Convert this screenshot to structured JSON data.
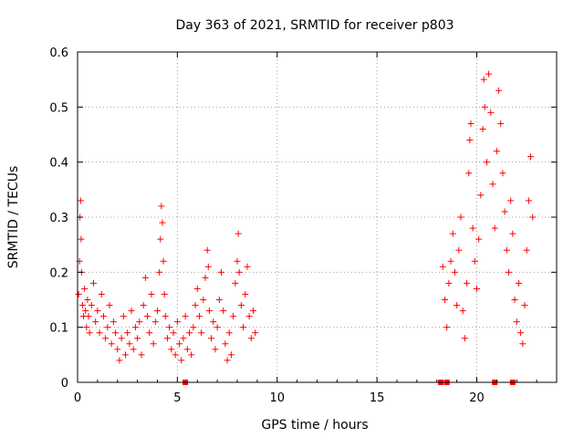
{
  "chart_data": {
    "type": "scatter",
    "title": "Day 363 of 2021, SRMTID for receiver p803",
    "xlabel": "GPS time / hours",
    "ylabel": "SRMTID / TECUs",
    "xlim": [
      0,
      24
    ],
    "ylim": [
      0,
      0.6
    ],
    "xticks": [
      0,
      5,
      10,
      15,
      20
    ],
    "yticks": [
      0,
      0.1,
      0.2,
      0.3,
      0.4,
      0.5,
      0.6
    ],
    "xtick_labels": [
      "0",
      "5",
      "10",
      "15",
      "20"
    ],
    "ytick_labels": [
      "0",
      "0.1",
      "0.2",
      "0.3",
      "0.4",
      "0.5",
      "0.6"
    ],
    "grid": true,
    "marker": "+",
    "series_color": "#ff0000",
    "series": [
      {
        "name": "SRMTID",
        "points": [
          [
            0.05,
            0.16
          ],
          [
            0.1,
            0.22
          ],
          [
            0.12,
            0.3
          ],
          [
            0.15,
            0.33
          ],
          [
            0.18,
            0.26
          ],
          [
            0.2,
            0.2
          ],
          [
            0.25,
            0.14
          ],
          [
            0.3,
            0.12
          ],
          [
            0.35,
            0.17
          ],
          [
            0.4,
            0.13
          ],
          [
            0.45,
            0.1
          ],
          [
            0.5,
            0.15
          ],
          [
            0.55,
            0.12
          ],
          [
            0.6,
            0.09
          ],
          [
            0.7,
            0.14
          ],
          [
            0.8,
            0.18
          ],
          [
            0.9,
            0.11
          ],
          [
            1.0,
            0.13
          ],
          [
            1.1,
            0.09
          ],
          [
            1.2,
            0.16
          ],
          [
            1.3,
            0.12
          ],
          [
            1.4,
            0.08
          ],
          [
            1.5,
            0.1
          ],
          [
            1.6,
            0.14
          ],
          [
            1.7,
            0.07
          ],
          [
            1.8,
            0.11
          ],
          [
            1.9,
            0.09
          ],
          [
            2.0,
            0.06
          ],
          [
            2.1,
            0.04
          ],
          [
            2.2,
            0.08
          ],
          [
            2.3,
            0.12
          ],
          [
            2.4,
            0.05
          ],
          [
            2.5,
            0.09
          ],
          [
            2.6,
            0.07
          ],
          [
            2.7,
            0.13
          ],
          [
            2.8,
            0.06
          ],
          [
            2.9,
            0.1
          ],
          [
            3.0,
            0.08
          ],
          [
            3.1,
            0.11
          ],
          [
            3.2,
            0.05
          ],
          [
            3.3,
            0.14
          ],
          [
            3.4,
            0.19
          ],
          [
            3.5,
            0.12
          ],
          [
            3.6,
            0.09
          ],
          [
            3.7,
            0.16
          ],
          [
            3.8,
            0.07
          ],
          [
            3.9,
            0.11
          ],
          [
            4.0,
            0.13
          ],
          [
            4.1,
            0.2
          ],
          [
            4.15,
            0.26
          ],
          [
            4.2,
            0.32
          ],
          [
            4.25,
            0.29
          ],
          [
            4.3,
            0.22
          ],
          [
            4.35,
            0.16
          ],
          [
            4.4,
            0.12
          ],
          [
            4.5,
            0.08
          ],
          [
            4.6,
            0.1
          ],
          [
            4.7,
            0.06
          ],
          [
            4.8,
            0.09
          ],
          [
            4.9,
            0.05
          ],
          [
            5.0,
            0.11
          ],
          [
            5.1,
            0.07
          ],
          [
            5.2,
            0.04
          ],
          [
            5.3,
            0.08
          ],
          [
            5.4,
            0.12
          ],
          [
            5.5,
            0.06
          ],
          [
            5.6,
            0.09
          ],
          [
            5.7,
            0.05
          ],
          [
            5.8,
            0.1
          ],
          [
            5.9,
            0.14
          ],
          [
            6.0,
            0.17
          ],
          [
            6.1,
            0.12
          ],
          [
            6.2,
            0.09
          ],
          [
            6.3,
            0.15
          ],
          [
            6.4,
            0.19
          ],
          [
            6.5,
            0.24
          ],
          [
            6.55,
            0.21
          ],
          [
            6.6,
            0.13
          ],
          [
            6.7,
            0.08
          ],
          [
            6.8,
            0.11
          ],
          [
            6.9,
            0.06
          ],
          [
            7.0,
            0.1
          ],
          [
            7.1,
            0.15
          ],
          [
            7.2,
            0.2
          ],
          [
            7.3,
            0.13
          ],
          [
            7.4,
            0.07
          ],
          [
            7.5,
            0.04
          ],
          [
            7.6,
            0.09
          ],
          [
            7.7,
            0.05
          ],
          [
            7.8,
            0.12
          ],
          [
            7.9,
            0.18
          ],
          [
            8.0,
            0.22
          ],
          [
            8.05,
            0.27
          ],
          [
            8.1,
            0.2
          ],
          [
            8.2,
            0.14
          ],
          [
            8.3,
            0.1
          ],
          [
            8.4,
            0.16
          ],
          [
            8.5,
            0.21
          ],
          [
            8.6,
            0.12
          ],
          [
            8.7,
            0.08
          ],
          [
            8.8,
            0.13
          ],
          [
            8.9,
            0.09
          ],
          [
            18.3,
            0.21
          ],
          [
            18.4,
            0.15
          ],
          [
            18.5,
            0.1
          ],
          [
            18.6,
            0.18
          ],
          [
            18.7,
            0.22
          ],
          [
            18.8,
            0.27
          ],
          [
            18.9,
            0.2
          ],
          [
            19.0,
            0.14
          ],
          [
            19.1,
            0.24
          ],
          [
            19.2,
            0.3
          ],
          [
            19.3,
            0.13
          ],
          [
            19.4,
            0.08
          ],
          [
            19.5,
            0.18
          ],
          [
            19.6,
            0.38
          ],
          [
            19.65,
            0.44
          ],
          [
            19.7,
            0.47
          ],
          [
            19.8,
            0.28
          ],
          [
            19.9,
            0.22
          ],
          [
            20.0,
            0.17
          ],
          [
            20.1,
            0.26
          ],
          [
            20.2,
            0.34
          ],
          [
            20.3,
            0.46
          ],
          [
            20.35,
            0.55
          ],
          [
            20.4,
            0.5
          ],
          [
            20.5,
            0.4
          ],
          [
            20.6,
            0.56
          ],
          [
            20.7,
            0.49
          ],
          [
            20.8,
            0.36
          ],
          [
            20.9,
            0.28
          ],
          [
            21.0,
            0.42
          ],
          [
            21.1,
            0.53
          ],
          [
            21.2,
            0.47
          ],
          [
            21.3,
            0.38
          ],
          [
            21.4,
            0.31
          ],
          [
            21.5,
            0.24
          ],
          [
            21.6,
            0.2
          ],
          [
            21.7,
            0.33
          ],
          [
            21.8,
            0.27
          ],
          [
            21.9,
            0.15
          ],
          [
            22.0,
            0.11
          ],
          [
            22.1,
            0.18
          ],
          [
            22.2,
            0.09
          ],
          [
            22.3,
            0.07
          ],
          [
            22.4,
            0.14
          ],
          [
            22.5,
            0.24
          ],
          [
            22.6,
            0.33
          ],
          [
            22.7,
            0.41
          ],
          [
            22.8,
            0.3
          ]
        ]
      }
    ],
    "zero_markers_x": [
      5.4,
      18.2,
      18.5,
      20.9,
      21.8
    ]
  }
}
